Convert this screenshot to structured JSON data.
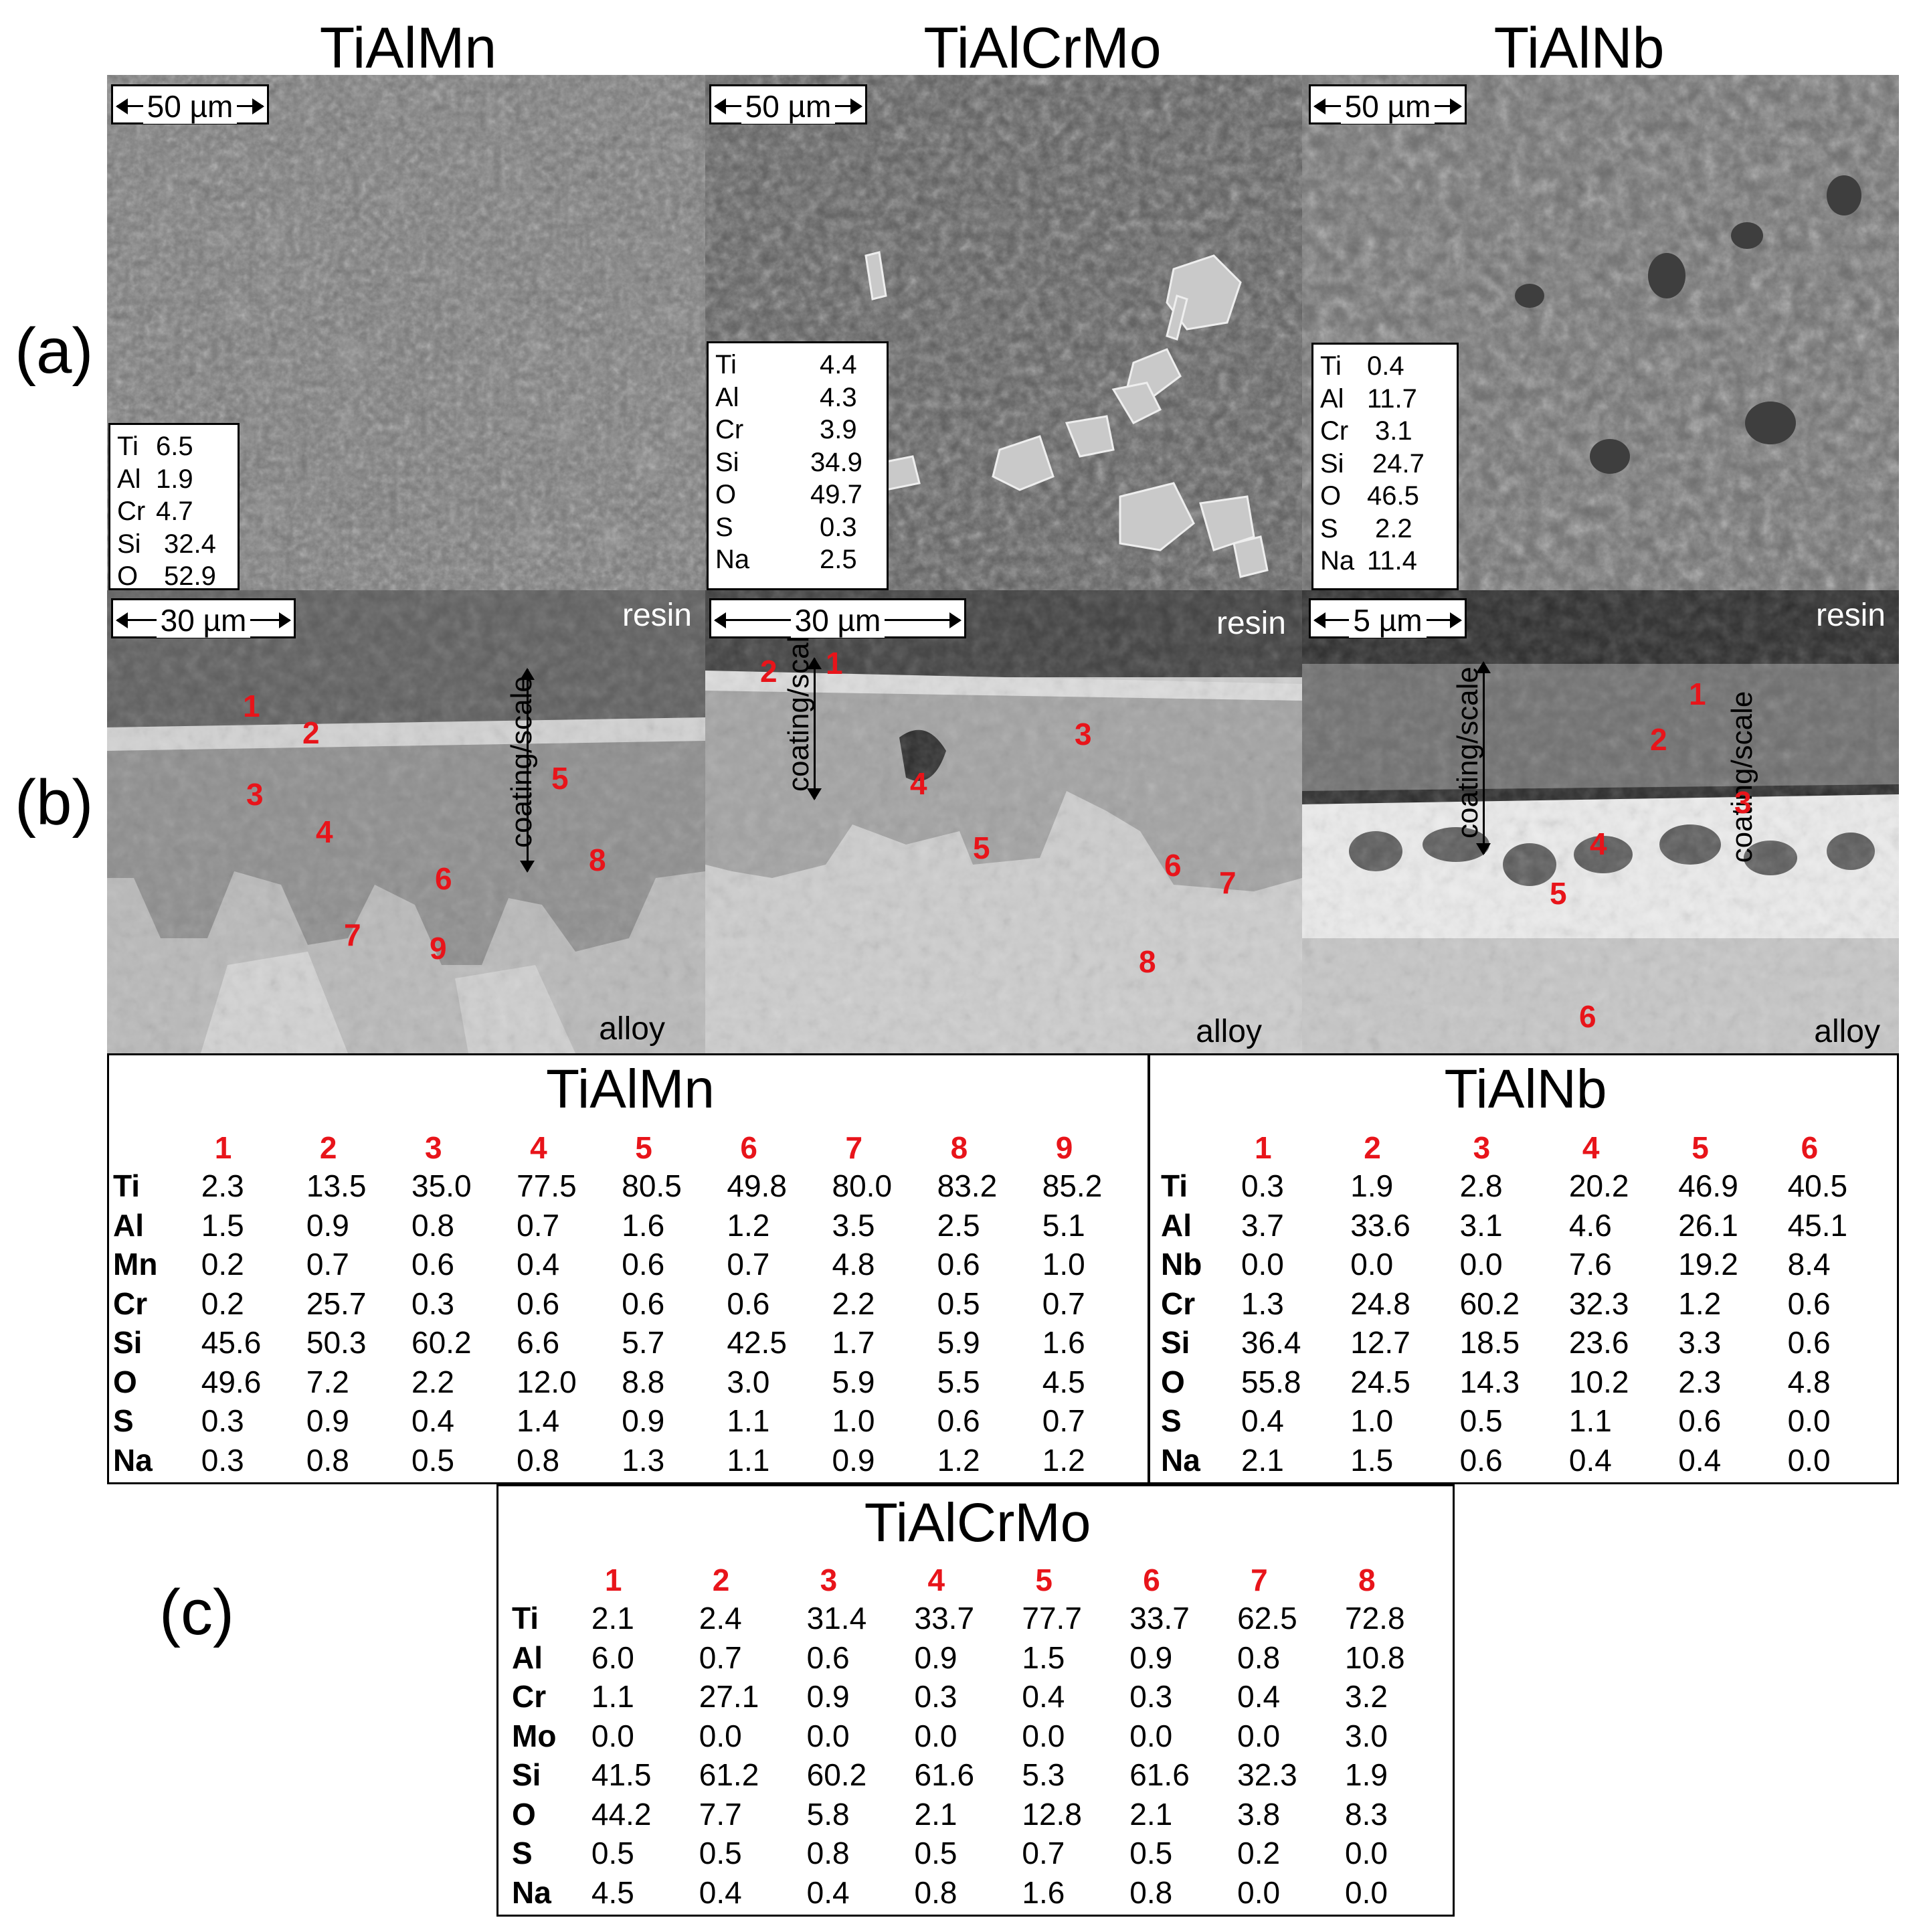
{
  "alloys": [
    "TiAlMn",
    "TiAlCrMo",
    "TiAlNb"
  ],
  "row_labels": {
    "a": "(a)",
    "b": "(b)",
    "c": "(c)"
  },
  "panel_a": [
    {
      "scale": "50 µm",
      "eds": [
        [
          "Ti",
          "6.5"
        ],
        [
          "Al",
          "1.9"
        ],
        [
          "Cr",
          "4.7"
        ],
        [
          "Si",
          "32.4"
        ],
        [
          "O",
          "52.9"
        ]
      ]
    },
    {
      "scale": "50 µm",
      "eds": [
        [
          "Ti",
          "4.4"
        ],
        [
          "Al",
          "4.3"
        ],
        [
          "Cr",
          "3.9"
        ],
        [
          "Si",
          "34.9"
        ],
        [
          "O",
          "49.7"
        ],
        [
          "S",
          "0.3"
        ],
        [
          "Na",
          "2.5"
        ]
      ]
    },
    {
      "scale": "50 µm",
      "eds": [
        [
          "Ti",
          "0.4"
        ],
        [
          "Al",
          "11.7"
        ],
        [
          "Cr",
          "3.1"
        ],
        [
          "Si",
          "24.7"
        ],
        [
          "O",
          "46.5"
        ],
        [
          "S",
          "2.2"
        ],
        [
          "Na",
          "11.4"
        ]
      ]
    }
  ],
  "panel_b": [
    {
      "scale": "30 µm",
      "resin": "resin",
      "alloy": "alloy",
      "coating": "coating/scale",
      "markers": [
        "1",
        "2",
        "3",
        "4",
        "5",
        "6",
        "7",
        "8",
        "9"
      ]
    },
    {
      "scale": "30 µm",
      "resin": "resin",
      "alloy": "alloy",
      "coating": "coating/scale",
      "markers": [
        "1",
        "2",
        "3",
        "4",
        "5",
        "6",
        "7",
        "8"
      ]
    },
    {
      "scale": "5 µm",
      "resin": "resin",
      "alloy": "alloy",
      "coating": "coating/scale",
      "markers": [
        "1",
        "2",
        "3",
        "4",
        "5",
        "6"
      ]
    }
  ],
  "tables": {
    "TiAlMn": {
      "title": "TiAlMn",
      "cols": [
        "1",
        "2",
        "3",
        "4",
        "5",
        "6",
        "7",
        "8",
        "9"
      ],
      "rows": [
        [
          "Ti",
          "2.3",
          "13.5",
          "35.0",
          "77.5",
          "80.5",
          "49.8",
          "80.0",
          "83.2",
          "85.2"
        ],
        [
          "Al",
          "1.5",
          "0.9",
          "0.8",
          "0.7",
          "1.6",
          "1.2",
          "3.5",
          "2.5",
          "5.1"
        ],
        [
          "Mn",
          "0.2",
          "0.7",
          "0.6",
          "0.4",
          "0.6",
          "0.7",
          "4.8",
          "0.6",
          "1.0"
        ],
        [
          "Cr",
          "0.2",
          "25.7",
          "0.3",
          "0.6",
          "0.6",
          "0.6",
          "2.2",
          "0.5",
          "0.7"
        ],
        [
          "Si",
          "45.6",
          "50.3",
          "60.2",
          "6.6",
          "5.7",
          "42.5",
          "1.7",
          "5.9",
          "1.6"
        ],
        [
          "O",
          "49.6",
          "7.2",
          "2.2",
          "12.0",
          "8.8",
          "3.0",
          "5.9",
          "5.5",
          "4.5"
        ],
        [
          "S",
          "0.3",
          "0.9",
          "0.4",
          "1.4",
          "0.9",
          "1.1",
          "1.0",
          "0.6",
          "0.7"
        ],
        [
          "Na",
          "0.3",
          "0.8",
          "0.5",
          "0.8",
          "1.3",
          "1.1",
          "0.9",
          "1.2",
          "1.2"
        ]
      ]
    },
    "TiAlNb": {
      "title": "TiAlNb",
      "cols": [
        "1",
        "2",
        "3",
        "4",
        "5",
        "6"
      ],
      "rows": [
        [
          "Ti",
          "0.3",
          "1.9",
          "2.8",
          "20.2",
          "46.9",
          "40.5"
        ],
        [
          "Al",
          "3.7",
          "33.6",
          "3.1",
          "4.6",
          "26.1",
          "45.1"
        ],
        [
          "Nb",
          "0.0",
          "0.0",
          "0.0",
          "7.6",
          "19.2",
          "8.4"
        ],
        [
          "Cr",
          "1.3",
          "24.8",
          "60.2",
          "32.3",
          "1.2",
          "0.6"
        ],
        [
          "Si",
          "36.4",
          "12.7",
          "18.5",
          "23.6",
          "3.3",
          "0.6"
        ],
        [
          "O",
          "55.8",
          "24.5",
          "14.3",
          "10.2",
          "2.3",
          "4.8"
        ],
        [
          "S",
          "0.4",
          "1.0",
          "0.5",
          "1.1",
          "0.6",
          "0.0"
        ],
        [
          "Na",
          "2.1",
          "1.5",
          "0.6",
          "0.4",
          "0.4",
          "0.0"
        ]
      ]
    },
    "TiAlCrMo": {
      "title": "TiAlCrMo",
      "cols": [
        "1",
        "2",
        "3",
        "4",
        "5",
        "6",
        "7",
        "8"
      ],
      "rows": [
        [
          "Ti",
          "2.1",
          "2.4",
          "31.4",
          "33.7",
          "77.7",
          "33.7",
          "62.5",
          "72.8"
        ],
        [
          "Al",
          "6.0",
          "0.7",
          "0.6",
          "0.9",
          "1.5",
          "0.9",
          "0.8",
          "10.8"
        ],
        [
          "Cr",
          "1.1",
          "27.1",
          "0.9",
          "0.3",
          "0.4",
          "0.3",
          "0.4",
          "3.2"
        ],
        [
          "Mo",
          "0.0",
          "0.0",
          "0.0",
          "0.0",
          "0.0",
          "0.0",
          "0.0",
          "3.0"
        ],
        [
          "Si",
          "41.5",
          "61.2",
          "60.2",
          "61.6",
          "5.3",
          "61.6",
          "32.3",
          "1.9"
        ],
        [
          "O",
          "44.2",
          "7.7",
          "5.8",
          "2.1",
          "12.8",
          "2.1",
          "3.8",
          "8.3"
        ],
        [
          "S",
          "0.5",
          "0.5",
          "0.8",
          "0.5",
          "0.7",
          "0.5",
          "0.2",
          "0.0"
        ],
        [
          "Na",
          "4.5",
          "0.4",
          "0.4",
          "0.8",
          "1.6",
          "0.8",
          "0.0",
          "0.0"
        ]
      ]
    }
  }
}
